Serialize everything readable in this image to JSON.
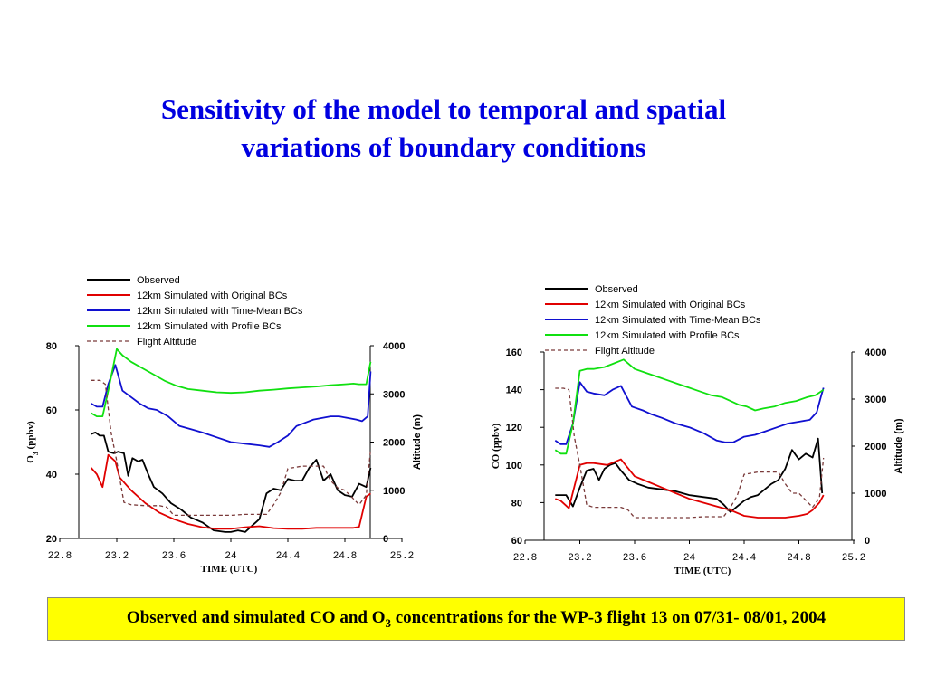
{
  "title": {
    "line1": "Sensitivity of the model to temporal and spatial",
    "line2": "variations of boundary conditions"
  },
  "caption": {
    "before": "Observed and simulated CO and O",
    "subscript": "3",
    "after": " concentrations for the WP-3 flight 13 on 07/31- 08/01, 2004"
  },
  "colors": {
    "observed": "#000000",
    "original": "#e00000",
    "timemean": "#1010d0",
    "profile": "#10e010",
    "altitude": "#7a3a3a",
    "title": "#0000e0",
    "caption_bg": "#ffff00"
  },
  "chart_data": [
    {
      "type": "line",
      "title": "",
      "xlabel": "TIME (UTC)",
      "ylabel": "O3 (ppbv)",
      "ylabel_main": "O",
      "ylabel_sub": "3",
      "ylabel_rest": " (ppbv)",
      "y2label": "Altitude (m)",
      "xlim": [
        22.8,
        25.2
      ],
      "ylim": [
        20,
        80
      ],
      "y2lim": [
        0,
        4000
      ],
      "xticks": [
        "22.8",
        "23.2",
        "23.6",
        "24",
        "24.4",
        "24.8",
        "25.2"
      ],
      "yticks": [
        "20",
        "40",
        "60",
        "80"
      ],
      "y2ticks": [
        "0",
        "1000",
        "2000",
        "3000",
        "4000"
      ],
      "legend_position": "top",
      "grid": false,
      "series": [
        {
          "name": "Observed",
          "key": "observed",
          "axis": "left",
          "dashed": false,
          "x": [
            23.02,
            23.05,
            23.08,
            23.11,
            23.14,
            23.18,
            23.21,
            23.25,
            23.28,
            23.31,
            23.35,
            23.38,
            23.42,
            23.46,
            23.52,
            23.58,
            23.65,
            23.72,
            23.8,
            23.88,
            23.96,
            24.0,
            24.05,
            24.1,
            24.15,
            24.2,
            24.25,
            24.3,
            24.35,
            24.4,
            24.45,
            24.5,
            24.55,
            24.6,
            24.65,
            24.7,
            24.75,
            24.8,
            24.85,
            24.9,
            24.95,
            24.98
          ],
          "y": [
            52.5,
            53,
            52,
            52,
            47,
            46.5,
            47,
            46.5,
            39.5,
            45,
            44,
            44.5,
            40,
            36,
            34,
            31,
            29,
            26.5,
            25,
            22.5,
            22,
            22,
            22.5,
            22,
            24,
            26,
            34,
            35.5,
            35,
            38.5,
            38,
            38,
            42,
            44.5,
            38,
            40,
            35,
            33.5,
            33,
            37,
            36,
            42
          ]
        },
        {
          "name": "12km Simulated with Original BCs",
          "key": "original",
          "axis": "left",
          "dashed": false,
          "x": [
            23.02,
            23.06,
            23.1,
            23.14,
            23.19,
            23.22,
            23.3,
            23.4,
            23.5,
            23.6,
            23.7,
            23.8,
            23.9,
            24.0,
            24.1,
            24.2,
            24.3,
            24.4,
            24.5,
            24.6,
            24.7,
            24.8,
            24.86,
            24.9,
            24.95,
            24.98
          ],
          "y": [
            42,
            40,
            36,
            46,
            44,
            39,
            35,
            31,
            28,
            26,
            24.5,
            23.5,
            23,
            23,
            23.5,
            23.8,
            23.2,
            23,
            23,
            23.3,
            23.3,
            23.3,
            23.3,
            23.6,
            33,
            34
          ]
        },
        {
          "name": "12km Simulated with Time-Mean BCs",
          "key": "timemean",
          "axis": "left",
          "dashed": false,
          "x": [
            23.02,
            23.06,
            23.1,
            23.14,
            23.19,
            23.24,
            23.3,
            23.36,
            23.42,
            23.48,
            23.56,
            23.64,
            23.72,
            23.8,
            23.9,
            24.0,
            24.1,
            24.2,
            24.27,
            24.33,
            24.4,
            24.46,
            24.52,
            24.58,
            24.64,
            24.7,
            24.76,
            24.82,
            24.88,
            24.92,
            24.96,
            24.98
          ],
          "y": [
            62,
            61,
            61,
            68,
            74,
            66,
            64,
            62,
            60.5,
            60,
            58,
            55,
            54,
            53,
            51.5,
            50,
            49.5,
            49,
            48.5,
            50,
            52,
            55,
            56,
            57,
            57.5,
            58,
            58,
            57.5,
            57,
            56.5,
            58,
            72
          ]
        },
        {
          "name": "12km Simulated with Profile BCs",
          "key": "profile",
          "axis": "left",
          "dashed": false,
          "x": [
            23.02,
            23.06,
            23.1,
            23.14,
            23.2,
            23.24,
            23.3,
            23.38,
            23.46,
            23.54,
            23.62,
            23.7,
            23.8,
            23.9,
            24.0,
            24.1,
            24.2,
            24.3,
            24.4,
            24.5,
            24.6,
            24.7,
            24.8,
            24.86,
            24.9,
            24.95,
            24.98
          ],
          "y": [
            59,
            58,
            58,
            66,
            79,
            77,
            75,
            73,
            71,
            69,
            67.5,
            66.5,
            66,
            65.5,
            65.3,
            65.5,
            66,
            66.3,
            66.7,
            67,
            67.3,
            67.7,
            68,
            68.2,
            68,
            68,
            75
          ]
        },
        {
          "name": "Flight Altitude",
          "key": "altitude",
          "axis": "right",
          "dashed": true,
          "x": [
            23.02,
            23.08,
            23.12,
            23.16,
            23.2,
            23.25,
            23.3,
            23.4,
            23.5,
            23.55,
            23.6,
            23.7,
            23.8,
            23.9,
            24.0,
            24.1,
            24.2,
            24.25,
            24.3,
            24.35,
            24.4,
            24.5,
            24.6,
            24.65,
            24.7,
            24.75,
            24.8,
            24.85,
            24.9,
            24.95,
            24.98
          ],
          "y": [
            3280,
            3280,
            3200,
            2200,
            1600,
            750,
            700,
            680,
            680,
            650,
            480,
            480,
            480,
            480,
            480,
            500,
            500,
            500,
            700,
            950,
            1450,
            1500,
            1500,
            1500,
            1200,
            1050,
            1000,
            850,
            700,
            900,
            1850
          ]
        }
      ]
    },
    {
      "type": "line",
      "title": "",
      "xlabel": "TIME (UTC)",
      "ylabel": "CO (ppbv)",
      "ylabel_main": "CO (ppbv)",
      "ylabel_sub": "",
      "ylabel_rest": "",
      "y2label": "Altitude (m)",
      "xlim": [
        22.8,
        25.2
      ],
      "ylim": [
        60,
        160
      ],
      "y2lim": [
        0,
        4000
      ],
      "xticks": [
        "22.8",
        "23.2",
        "23.6",
        "24",
        "24.4",
        "24.8",
        "25.2"
      ],
      "yticks": [
        "60",
        "80",
        "100",
        "120",
        "140",
        "160"
      ],
      "y2ticks": [
        "0",
        "1000",
        "2000",
        "3000",
        "4000"
      ],
      "legend_position": "top",
      "grid": false,
      "series": [
        {
          "name": "Observed",
          "key": "observed",
          "axis": "left",
          "dashed": false,
          "x": [
            23.02,
            23.06,
            23.1,
            23.15,
            23.2,
            23.25,
            23.3,
            23.34,
            23.38,
            23.42,
            23.46,
            23.5,
            23.56,
            23.62,
            23.7,
            23.8,
            23.9,
            24.0,
            24.1,
            24.2,
            24.25,
            24.3,
            24.35,
            24.4,
            24.45,
            24.5,
            24.55,
            24.6,
            24.65,
            24.7,
            24.75,
            24.8,
            24.85,
            24.9,
            24.94,
            24.97
          ],
          "y": [
            84,
            84,
            84,
            78,
            88,
            97,
            98,
            92,
            98,
            100,
            101,
            97,
            92,
            90,
            88,
            87,
            86,
            84,
            83,
            82,
            79,
            75,
            78,
            81,
            83,
            84,
            87,
            90,
            92,
            98,
            108,
            103,
            106,
            104,
            114,
            85
          ]
        },
        {
          "name": "12km Simulated with Original BCs",
          "key": "original",
          "axis": "left",
          "dashed": false,
          "x": [
            23.02,
            23.06,
            23.12,
            23.2,
            23.25,
            23.3,
            23.4,
            23.5,
            23.6,
            23.7,
            23.8,
            23.9,
            24.0,
            24.1,
            24.2,
            24.3,
            24.4,
            24.5,
            24.6,
            24.7,
            24.8,
            24.86,
            24.9,
            24.95,
            24.98
          ],
          "y": [
            82,
            81,
            77,
            100,
            101,
            101,
            100,
            103,
            94,
            91,
            88,
            85,
            82,
            80,
            78,
            76,
            73,
            72,
            72,
            72,
            73,
            74,
            76,
            80,
            84
          ]
        },
        {
          "name": "12km Simulated with Time-Mean BCs",
          "key": "timemean",
          "axis": "left",
          "dashed": false,
          "x": [
            23.02,
            23.06,
            23.1,
            23.15,
            23.2,
            23.25,
            23.3,
            23.38,
            23.44,
            23.5,
            23.58,
            23.66,
            23.72,
            23.8,
            23.9,
            24.0,
            24.1,
            24.2,
            24.26,
            24.32,
            24.4,
            24.48,
            24.56,
            24.64,
            24.72,
            24.8,
            24.88,
            24.93,
            24.96,
            24.98
          ],
          "y": [
            113,
            111,
            111,
            122,
            144,
            139,
            138,
            137,
            140,
            142,
            131,
            129,
            127,
            125,
            122,
            120,
            117,
            113,
            112,
            112,
            115,
            116,
            118,
            120,
            122,
            123,
            124,
            128,
            136,
            141
          ]
        },
        {
          "name": "12km Simulated with Profile BCs",
          "key": "profile",
          "axis": "left",
          "dashed": false,
          "x": [
            23.02,
            23.06,
            23.1,
            23.15,
            23.2,
            23.25,
            23.3,
            23.38,
            23.45,
            23.52,
            23.6,
            23.68,
            23.76,
            23.84,
            23.92,
            24.0,
            24.08,
            24.16,
            24.24,
            24.3,
            24.36,
            24.42,
            24.48,
            24.54,
            24.62,
            24.7,
            24.78,
            24.86,
            24.92,
            24.96,
            24.98
          ],
          "y": [
            108,
            106,
            106,
            122,
            150,
            151,
            151,
            152,
            154,
            156,
            151,
            149,
            147,
            145,
            143,
            141,
            139,
            137,
            136,
            134,
            132,
            131,
            129,
            130,
            131,
            133,
            134,
            136,
            137,
            139,
            140
          ]
        },
        {
          "name": "Flight Altitude",
          "key": "altitude",
          "axis": "right",
          "dashed": true,
          "x": [
            23.02,
            23.08,
            23.12,
            23.16,
            23.2,
            23.25,
            23.3,
            23.4,
            23.5,
            23.55,
            23.6,
            23.7,
            23.8,
            23.9,
            24.0,
            24.1,
            24.2,
            24.25,
            24.3,
            24.35,
            24.4,
            24.5,
            24.6,
            24.65,
            24.7,
            24.75,
            24.8,
            24.85,
            24.9,
            24.95,
            24.98
          ],
          "y": [
            3230,
            3230,
            3200,
            2200,
            1600,
            750,
            700,
            700,
            700,
            650,
            480,
            480,
            480,
            480,
            480,
            500,
            500,
            500,
            700,
            950,
            1400,
            1450,
            1450,
            1450,
            1200,
            1000,
            1000,
            850,
            700,
            900,
            1750
          ]
        }
      ]
    }
  ]
}
